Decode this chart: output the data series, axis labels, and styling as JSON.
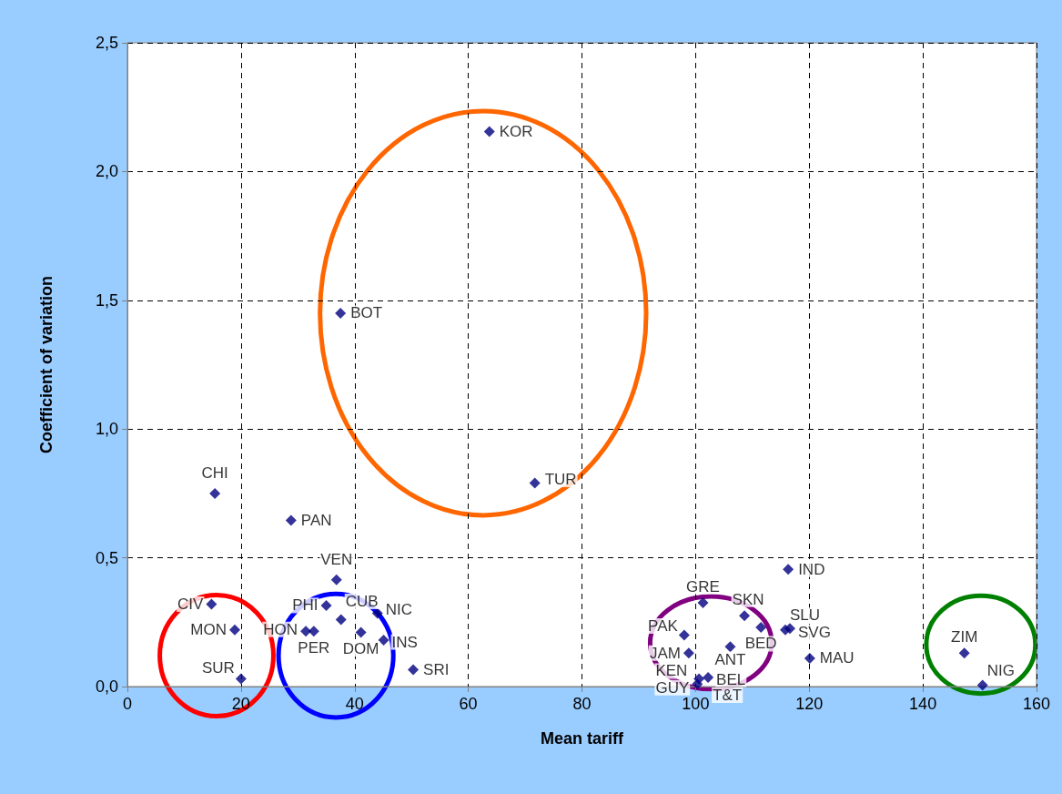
{
  "chart_data": {
    "type": "scatter",
    "xlabel": "Mean tariff",
    "ylabel": "Coefficient of variation",
    "x": [
      15.4,
      28.8,
      36.8,
      14.8,
      18.9,
      20.0,
      35.0,
      31.4,
      32.8,
      37.6,
      41.1,
      44.0,
      45.1,
      50.3,
      37.5,
      63.7,
      71.7,
      116.3,
      101.3,
      108.6,
      111.5,
      115.8,
      116.6,
      98.0,
      106.1,
      98.8,
      100.0,
      100.3,
      100.6,
      102.2,
      120.1,
      147.3,
      150.5
    ],
    "values": [
      0.75,
      0.645,
      0.415,
      0.32,
      0.22,
      0.03,
      0.315,
      0.215,
      0.215,
      0.26,
      0.21,
      0.285,
      0.18,
      0.065,
      1.45,
      2.155,
      0.79,
      0.455,
      0.325,
      0.275,
      0.23,
      0.22,
      0.225,
      0.2,
      0.155,
      0.13,
      null,
      0.01,
      0.03,
      0.035,
      0.11,
      0.13,
      0.005
    ],
    "color": "#000080",
    "marker": "diamond",
    "xlim": [
      0,
      160
    ],
    "xticks": [
      0,
      20,
      40,
      60,
      80,
      100,
      120,
      140,
      160
    ],
    "ylim": [
      0,
      2.5
    ],
    "yticks": [
      {
        "value": 0,
        "label": "0,0"
      },
      {
        "value": 0.5,
        "label": "0,5"
      },
      {
        "value": 1,
        "label": "1,0"
      },
      {
        "value": 1.5,
        "label": "1,5"
      },
      {
        "value": 2,
        "label": "2,0"
      },
      {
        "value": 2.5,
        "label": "2,5"
      }
    ],
    "grid": true,
    "annotations": [
      {
        "text": "CHI",
        "x": 15.4,
        "y": 0.75
      },
      {
        "text": "PAN",
        "x": 28.8,
        "y": 0.645
      },
      {
        "text": "VEN",
        "x": 36.8,
        "y": 0.415
      },
      {
        "text": "CIV",
        "x": 14.8,
        "y": 0.32
      },
      {
        "text": "MON",
        "x": 18.9,
        "y": 0.22
      },
      {
        "text": "SUR",
        "x": 20.0,
        "y": 0.03
      },
      {
        "text": "PHI",
        "x": 35.0,
        "y": 0.315
      },
      {
        "text": "HON",
        "x": 31.4,
        "y": 0.215
      },
      {
        "text": "PER",
        "x": 32.8,
        "y": 0.215
      },
      {
        "text": "CUB",
        "x": 37.6,
        "y": 0.26
      },
      {
        "text": "DOM",
        "x": 41.1,
        "y": 0.21
      },
      {
        "text": "NIC",
        "x": 44.0,
        "y": 0.285
      },
      {
        "text": "INS",
        "x": 45.1,
        "y": 0.18
      },
      {
        "text": "SRI",
        "x": 50.3,
        "y": 0.065
      },
      {
        "text": "BOT",
        "x": 37.5,
        "y": 1.45
      },
      {
        "text": "KOR",
        "x": 63.7,
        "y": 2.155
      },
      {
        "text": "TUR",
        "x": 71.7,
        "y": 0.79
      },
      {
        "text": "IND",
        "x": 116.3,
        "y": 0.455
      },
      {
        "text": "GRE",
        "x": 101.3,
        "y": 0.325
      },
      {
        "text": "SKN",
        "x": 108.6,
        "y": 0.275
      },
      {
        "text": "BED",
        "x": 111.5,
        "y": 0.23
      },
      {
        "text": "SLU",
        "x": 115.8,
        "y": 0.22
      },
      {
        "text": "SVG",
        "x": 116.6,
        "y": 0.225
      },
      {
        "text": "PAK",
        "x": 98.0,
        "y": 0.2
      },
      {
        "text": "ANT",
        "x": 106.1,
        "y": 0.155
      },
      {
        "text": "JAM",
        "x": 98.8,
        "y": 0.13
      },
      {
        "text": "KEN",
        "x": 100.0,
        "y": 0.025
      },
      {
        "text": "GUY",
        "x": 100.3,
        "y": 0.01
      },
      {
        "text": "T&T",
        "x": 100.6,
        "y": 0.03
      },
      {
        "text": "BEL",
        "x": 102.2,
        "y": 0.035
      },
      {
        "text": "MAU",
        "x": 120.1,
        "y": 0.11
      },
      {
        "text": "ZIM",
        "x": 147.3,
        "y": 0.13
      },
      {
        "text": "NIG",
        "x": 150.5,
        "y": 0.005
      }
    ]
  }
}
